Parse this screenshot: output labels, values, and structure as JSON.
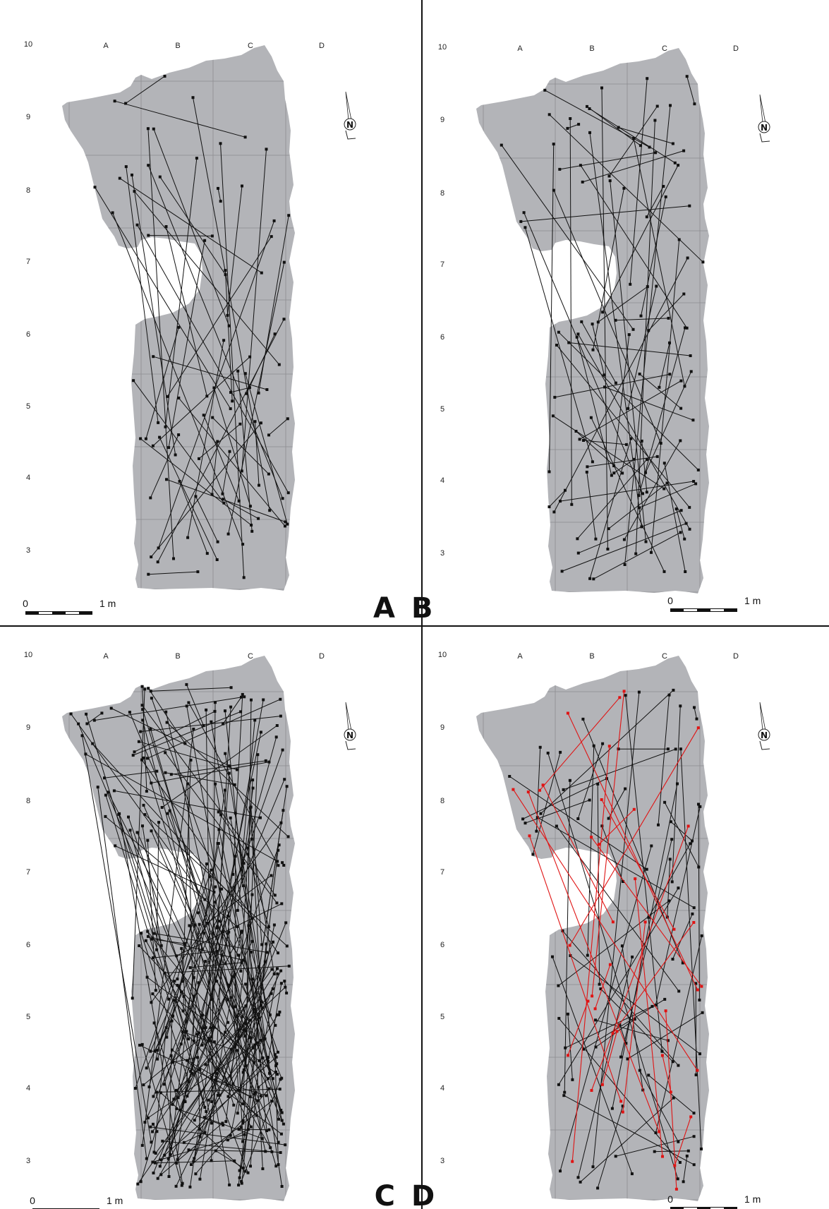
{
  "figure": {
    "panels": [
      {
        "id": "A",
        "label": "A",
        "refit_count": 55,
        "highlight_count": 0
      },
      {
        "id": "B",
        "label": "B",
        "refit_count": 70,
        "highlight_count": 0
      },
      {
        "id": "C",
        "label": "C",
        "refit_count": 230,
        "highlight_count": 0
      },
      {
        "id": "D",
        "label": "D",
        "refit_count": 60,
        "highlight_count": 22
      }
    ],
    "grid_columns": [
      "A",
      "B",
      "C",
      "D"
    ],
    "grid_rows": [
      "10",
      "9",
      "8",
      "7",
      "6",
      "5",
      "4",
      "3"
    ],
    "north_label": "N",
    "scale_start": "0",
    "scale_end": "1 m",
    "colors": {
      "excavation_area": "#b3b4b8",
      "gridline": "#8c8d90",
      "refit_line": "#111111",
      "highlight_line": "#e01414",
      "divider": "#111111"
    }
  }
}
